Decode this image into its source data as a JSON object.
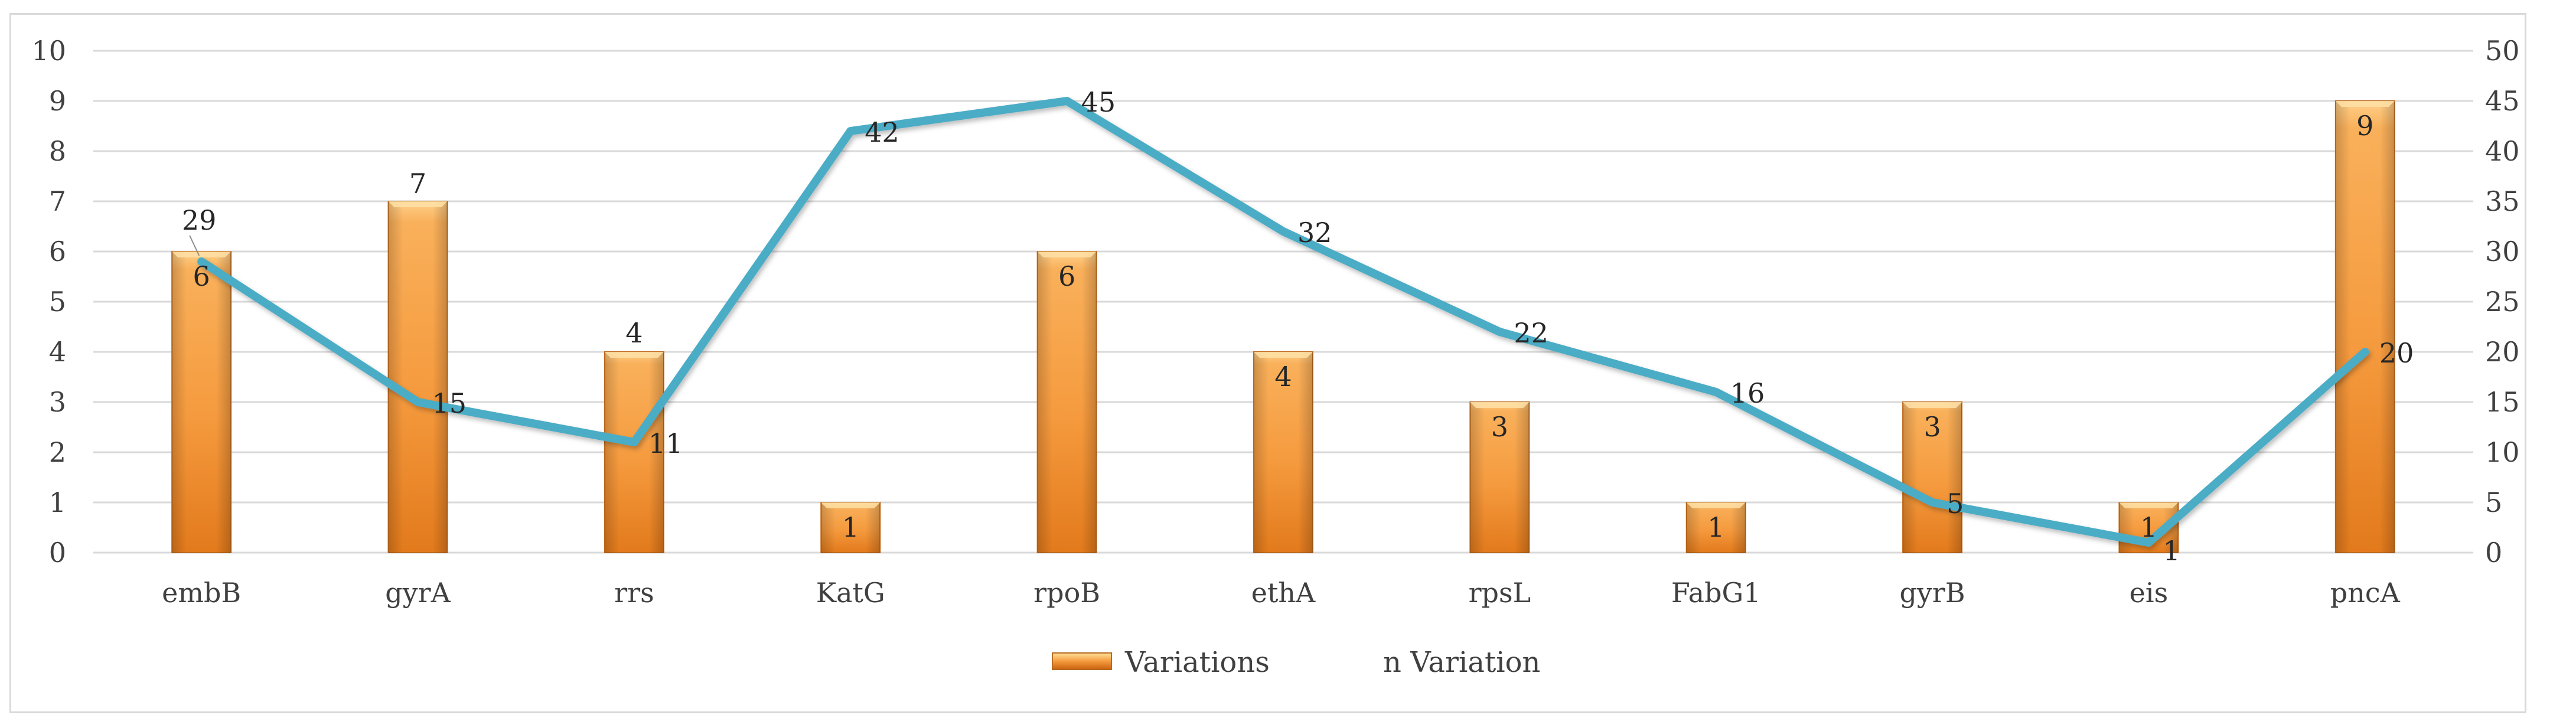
{
  "chart_data": {
    "type": "bar",
    "categories": [
      "embB",
      "gyrA",
      "rrs",
      "KatG",
      "rpoB",
      "ethA",
      "rpsL",
      "FabG1",
      "gyrB",
      "eis",
      "pncA"
    ],
    "series": [
      {
        "name": "Variations",
        "type": "bar",
        "axis": "left",
        "values": [
          6,
          7,
          4,
          1,
          6,
          4,
          3,
          1,
          3,
          1,
          9
        ]
      },
      {
        "name": "n Variation",
        "type": "line",
        "axis": "right",
        "values": [
          29,
          15,
          11,
          42,
          45,
          32,
          22,
          16,
          5,
          1,
          20
        ]
      }
    ],
    "ylim_left": [
      0,
      10
    ],
    "yticks_left": [
      "0",
      "1",
      "2",
      "3",
      "4",
      "5",
      "6",
      "7",
      "8",
      "9",
      "10"
    ],
    "ylim_right": [
      0,
      50
    ],
    "yticks_right": [
      "0",
      "5",
      "10",
      "15",
      "20",
      "25",
      "30",
      "35",
      "40",
      "45",
      "50"
    ],
    "grid": true,
    "legend_position": "bottom",
    "colors": {
      "bar": "#f5a04a",
      "bar_dark": "#d86f12",
      "line": "#4bacc6",
      "grid": "#d9d9d9"
    },
    "title": "",
    "xlabel": "",
    "ylabel": ""
  }
}
